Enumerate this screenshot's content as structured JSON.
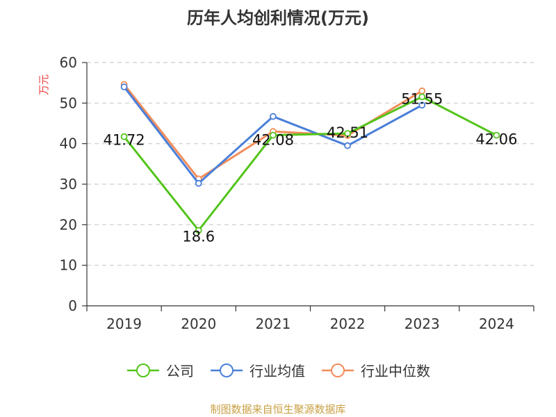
{
  "chart_data": {
    "type": "line",
    "title": "历年人均创利情况(万元)",
    "ylabel": "万元",
    "categories": [
      "2019",
      "2020",
      "2021",
      "2022",
      "2023",
      "2024"
    ],
    "ylim": [
      0,
      60
    ],
    "yticks": [
      0,
      10,
      20,
      30,
      40,
      50,
      60
    ],
    "grid": true,
    "legend_position": "bottom",
    "series": [
      {
        "name": "公司",
        "color": "#52c41a",
        "values": [
          41.72,
          18.6,
          42.08,
          42.51,
          51.55,
          42.06
        ],
        "labels": [
          "41.72",
          "18.6",
          "42.08",
          "42.51",
          "51.55",
          "42.06"
        ]
      },
      {
        "name": "行业均值",
        "color": "#4a7fd8",
        "values": [
          54.0,
          30.2,
          46.7,
          39.5,
          49.5,
          null
        ]
      },
      {
        "name": "行业中位数",
        "color": "#f28c5a",
        "values": [
          54.6,
          31.3,
          43.0,
          42.0,
          53.0,
          null
        ]
      }
    ]
  },
  "source": "制图数据来自恒生聚源数据库"
}
